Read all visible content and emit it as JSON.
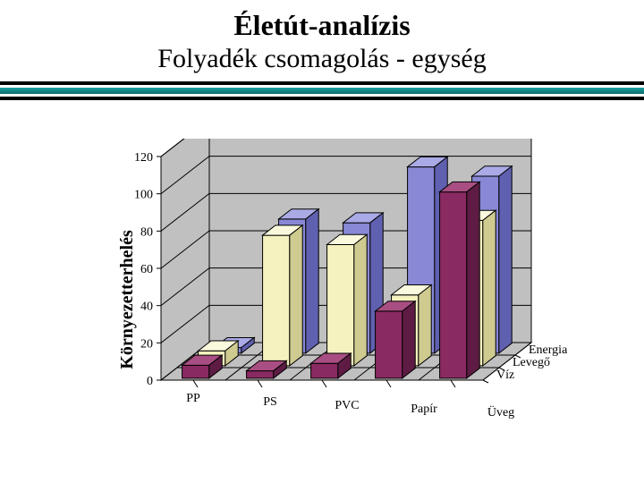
{
  "title": "Életút-analízis",
  "subtitle": "Folyadék csomagolás - egység",
  "ylabel": "Környezetterhelés",
  "chart": {
    "type": "3d-bar-grouped",
    "ylim": [
      0,
      120
    ],
    "ytick_step": 20,
    "grid_color": "#000000",
    "wall_color": "#c0c0c0",
    "floor_color": "#c0c0c0",
    "background_color": "#ffffff",
    "categories": [
      "PP",
      "PS",
      "PVC",
      "Papír",
      "Üveg"
    ],
    "series": [
      {
        "name": "Energia",
        "color_face": "#8888d6",
        "color_top": "#aaaae6",
        "color_side": "#6060b0",
        "values": [
          3,
          72,
          70,
          100,
          95
        ]
      },
      {
        "name": "Levegő",
        "color_face": "#f5f2bf",
        "color_top": "#fbf9dd",
        "color_side": "#cfca90",
        "values": [
          8,
          70,
          65,
          38,
          78
        ]
      },
      {
        "name": "Víz",
        "color_face": "#8a2a62",
        "color_top": "#a84e82",
        "color_side": "#5e1c44",
        "values": [
          7,
          4,
          8,
          36,
          100
        ]
      }
    ],
    "axis_fontsize": 14,
    "label_fontsize": 14
  }
}
